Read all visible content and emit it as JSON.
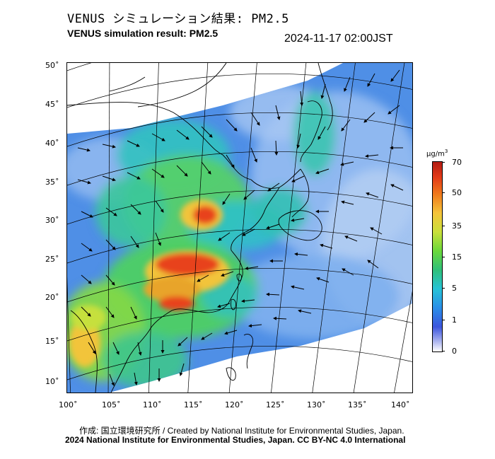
{
  "header": {
    "title_jp": "VENUS シミュレーション結果: PM2.5",
    "title_en": "VENUS simulation result: PM2.5",
    "timestamp": "2024-11-17 02:00JST"
  },
  "map": {
    "lat_labels": [
      "50˚",
      "45˚",
      "40˚",
      "35˚",
      "30˚",
      "25˚",
      "20˚",
      "15˚",
      "10˚"
    ],
    "lon_labels": [
      "100˚",
      "105˚",
      "110˚",
      "115˚",
      "120˚",
      "125˚",
      "130˚",
      "135˚",
      "140˚"
    ]
  },
  "colorbar": {
    "unit_base": "μg/m",
    "unit_exp": "3",
    "labels": [
      "70",
      "50",
      "35",
      "15",
      "5",
      "1",
      "0"
    ],
    "colors": [
      "#b31c13",
      "#f07a1c",
      "#f5c43a",
      "#6ad83a",
      "#27c3d7",
      "#3b55dd",
      "#ffffff"
    ]
  },
  "footer": {
    "credit_jp": "作成: 国立環境研究所 / Created by National Institute for Environmental Studies, Japan.",
    "copyright": "2024 National Institute for Environmental Studies, Japan. CC BY-NC 4.0 International"
  }
}
